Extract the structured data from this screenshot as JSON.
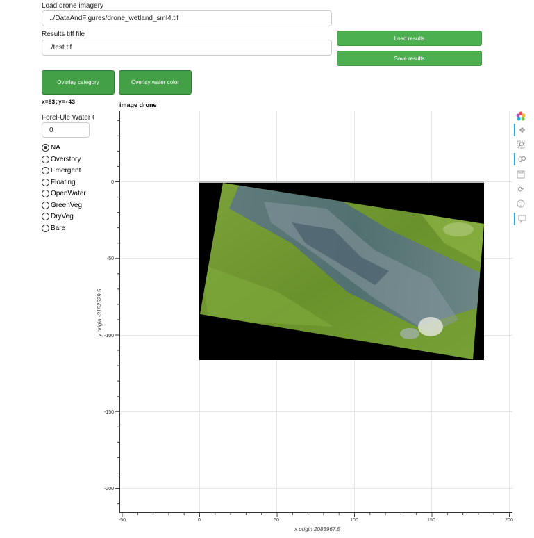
{
  "load": {
    "label": "Load drone imagery",
    "value": "../DataAndFigures/drone_wetland_sml4.tif"
  },
  "results": {
    "label": "Results tiff file",
    "value": "./test.tif"
  },
  "buttons": {
    "load_results": "Load results",
    "save_results": "Save results",
    "overlay_category": "Overlay category",
    "overlay_water_color": "Overlay water color"
  },
  "coords": "x=83;y=-43",
  "forel": {
    "label": "Forel-Ule Water C",
    "value": "0"
  },
  "categories": {
    "selected": "NA",
    "items": [
      "NA",
      "Overstory",
      "Emergent",
      "Floating",
      "OpenWater",
      "GreenVeg",
      "DryVeg",
      "Bare"
    ]
  },
  "plot": {
    "title": "image drone",
    "xlabel": "x origin 2083967.5",
    "ylabel": "y origin -3152529.5",
    "xticks": [
      "-50",
      "0",
      "50",
      "100",
      "150",
      "200"
    ],
    "yticks": [
      "0",
      "-50",
      "-100",
      "-150",
      "-200"
    ]
  },
  "toolbar": {
    "icons": [
      "bokeh-logo-icon",
      "pan-icon",
      "box-zoom-icon",
      "wheel-zoom-icon",
      "save-icon",
      "reset-icon",
      "help-icon",
      "hover-icon"
    ],
    "active": [
      "pan-icon",
      "wheel-zoom-icon",
      "hover-icon"
    ]
  },
  "colors": {
    "button_green": "#4caf50",
    "image_background": "#000000",
    "vegetation_green": "#6e9a2c",
    "water_blue": "#4e6a7a"
  }
}
